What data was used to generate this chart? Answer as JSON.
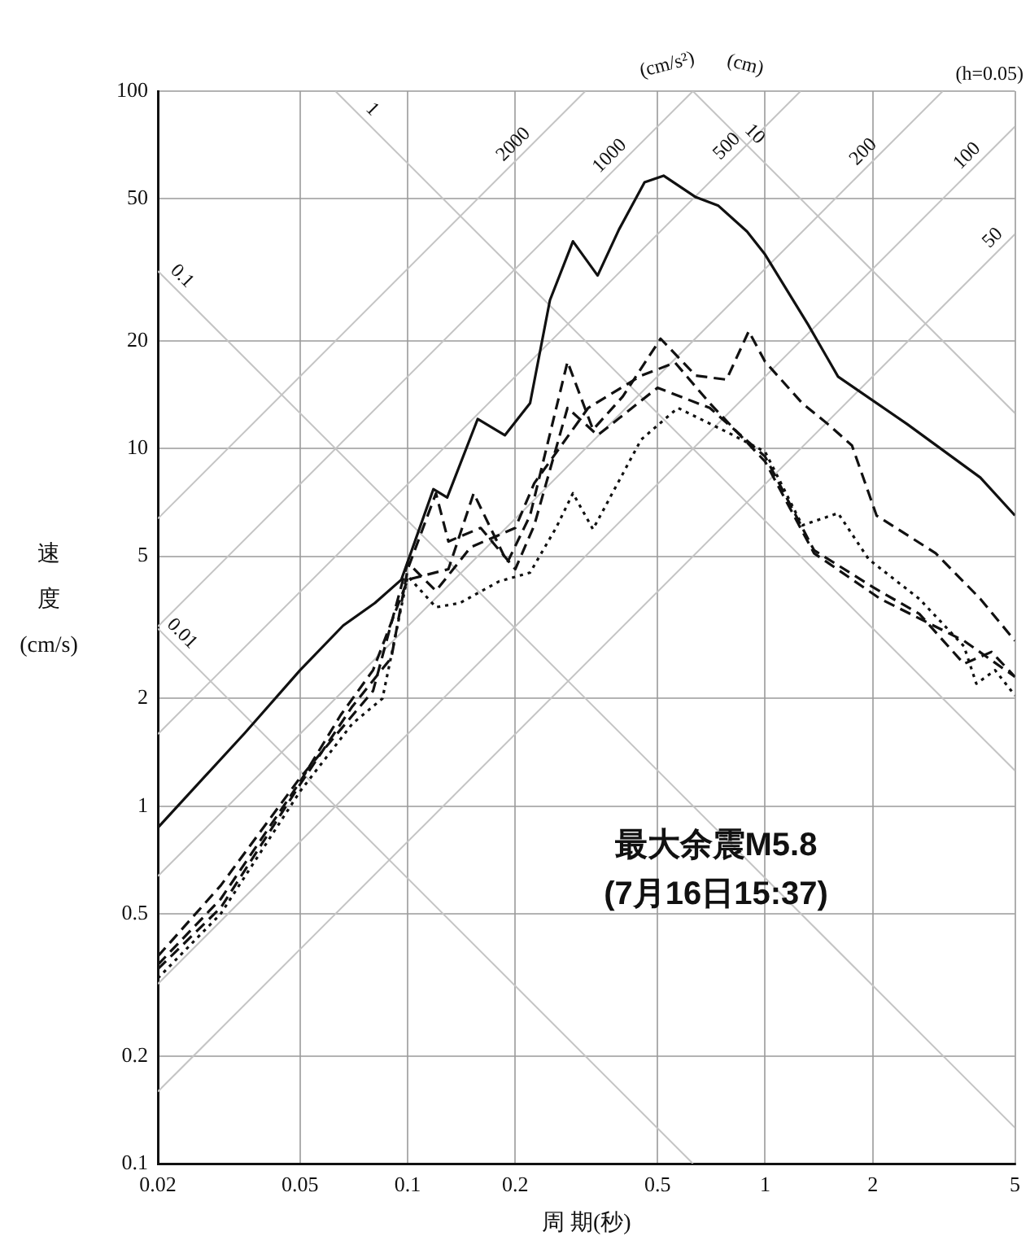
{
  "chart_data": {
    "type": "line",
    "xlabel": "周 期(秒)",
    "ylabel": "速度(cm/s)",
    "log": "xy",
    "grid": true,
    "legend": false,
    "marker": "none",
    "xlim": [
      0.02,
      5
    ],
    "xticks": [
      0.02,
      0.05,
      0.1,
      0.2,
      0.5,
      1,
      2,
      5
    ],
    "ylim": [
      0.1,
      100
    ],
    "yticks": [
      0.1,
      0.2,
      0.5,
      1,
      2,
      5,
      10,
      20,
      50,
      100
    ],
    "series": [
      {
        "color": "#111111",
        "line_style": "solid",
        "x": [
          0.02,
          0.035,
          0.05,
          0.066,
          0.081,
          0.096,
          0.118,
          0.129,
          0.157,
          0.187,
          0.22,
          0.25,
          0.29,
          0.34,
          0.39,
          0.46,
          0.52,
          0.64,
          0.74,
          0.89,
          1.0,
          1.32,
          1.6,
          2.5,
          4.0,
          5.0
        ],
        "values": [
          0.87,
          1.6,
          2.4,
          3.2,
          3.7,
          4.3,
          7.7,
          7.3,
          12.1,
          10.9,
          13.4,
          26,
          38,
          30.5,
          41,
          55.6,
          58,
          50.5,
          47.8,
          40.5,
          34.9,
          22.2,
          15.9,
          11.7,
          8.3,
          6.5
        ]
      },
      {
        "color": "#111111",
        "line_style": "dashed",
        "x": [
          0.02,
          0.03,
          0.05,
          0.065,
          0.08,
          0.1,
          0.13,
          0.153,
          0.19,
          0.22,
          0.28,
          0.33,
          0.4,
          0.51,
          0.64,
          0.78,
          0.9,
          1.0,
          1.27,
          1.5,
          1.75,
          2.05,
          3.0,
          4.0,
          5.0
        ],
        "values": [
          0.36,
          0.55,
          1.17,
          1.8,
          2.4,
          4.3,
          4.6,
          7.5,
          4.8,
          6.5,
          17.5,
          11.3,
          14,
          20.3,
          16,
          15.6,
          21.3,
          17.5,
          13.4,
          11.7,
          10.2,
          6.5,
          5.1,
          3.8,
          2.9
        ]
      },
      {
        "color": "#111111",
        "line_style": "dashed",
        "x": [
          0.02,
          0.03,
          0.05,
          0.08,
          0.1,
          0.12,
          0.15,
          0.2,
          0.226,
          0.32,
          0.45,
          0.56,
          0.7,
          1.0,
          1.37,
          2.1,
          3.6,
          5.0
        ],
        "values": [
          0.38,
          0.6,
          1.2,
          2.1,
          4.8,
          4.0,
          5.3,
          6.0,
          8.0,
          13,
          16,
          17.4,
          13.4,
          9.2,
          5.1,
          3.8,
          2.9,
          2.3
        ]
      },
      {
        "color": "#111111",
        "line_style": "dotted",
        "x": [
          0.02,
          0.03,
          0.05,
          0.07,
          0.085,
          0.1,
          0.12,
          0.14,
          0.18,
          0.22,
          0.26,
          0.29,
          0.33,
          0.45,
          0.57,
          0.8,
          1.0,
          1.27,
          1.6,
          1.95,
          2.7,
          3.6,
          3.9,
          4.4,
          5.0
        ],
        "values": [
          0.33,
          0.5,
          1.1,
          1.7,
          2.0,
          4.4,
          3.6,
          3.7,
          4.25,
          4.5,
          6.0,
          7.5,
          5.95,
          10.6,
          13,
          11,
          9.8,
          6.1,
          6.6,
          4.9,
          3.8,
          2.8,
          2.2,
          2.4,
          2.04
        ]
      },
      {
        "color": "#111111",
        "line_style": "dashed",
        "x": [
          0.02,
          0.03,
          0.05,
          0.07,
          0.09,
          0.1,
          0.12,
          0.13,
          0.16,
          0.2,
          0.226,
          0.28,
          0.34,
          0.5,
          0.7,
          1.0,
          1.37,
          2.0,
          2.7,
          3.6,
          4.3,
          5.0
        ],
        "values": [
          0.35,
          0.52,
          1.15,
          1.9,
          2.6,
          4.6,
          7.5,
          5.5,
          6.0,
          4.6,
          6.1,
          13,
          10.9,
          14.8,
          13,
          9.5,
          5.2,
          4.1,
          3.45,
          2.5,
          2.7,
          2.3
        ]
      },
      {
        "color": "#c4c4c4",
        "line_style": "solid",
        "x": [
          0.02,
          0.314
        ],
        "values": [
          6.37,
          100
        ]
      },
      {
        "color": "#c4c4c4",
        "line_style": "solid",
        "x": [
          0.02,
          0.628
        ],
        "values": [
          3.18,
          100
        ]
      },
      {
        "color": "#c4c4c4",
        "line_style": "solid",
        "x": [
          0.02,
          1.257
        ],
        "values": [
          1.59,
          100
        ]
      },
      {
        "color": "#c4c4c4",
        "line_style": "solid",
        "x": [
          0.02,
          3.14
        ],
        "values": [
          0.637,
          100
        ]
      },
      {
        "color": "#c4c4c4",
        "line_style": "solid",
        "x": [
          0.02,
          5
        ],
        "values": [
          0.318,
          79.6
        ]
      },
      {
        "color": "#c4c4c4",
        "line_style": "solid",
        "x": [
          0.02,
          5
        ],
        "values": [
          0.159,
          39.8
        ]
      },
      {
        "color": "#c4c4c4",
        "line_style": "solid",
        "x": [
          0.0628,
          5
        ],
        "values": [
          100,
          1.257
        ]
      },
      {
        "color": "#c4c4c4",
        "line_style": "solid",
        "x": [
          0.02,
          5
        ],
        "values": [
          31.4,
          0.126
        ]
      },
      {
        "color": "#c4c4c4",
        "line_style": "solid",
        "x": [
          0.02,
          0.628
        ],
        "values": [
          3.14,
          0.1
        ]
      },
      {
        "color": "#c4c4c4",
        "line_style": "solid",
        "x": [
          0.628,
          5
        ],
        "values": [
          100,
          12.57
        ]
      }
    ],
    "annotations": [
      "(cm/s²)",
      "(cm)",
      "(h=0.05)",
      "最大余震M5.8\n(7月16日15:37)",
      {
        "text": "1",
        "x": 0.075,
        "y": 83.8
      },
      {
        "text": "0.1",
        "x": 0.022,
        "y": 28.6
      },
      {
        "text": "0.01",
        "x": 0.022,
        "y": 2.86
      },
      {
        "text": "2000",
        "x": 0.21,
        "y": 66.8
      },
      {
        "text": "1000",
        "x": 0.39,
        "y": 62
      },
      {
        "text": "500",
        "x": 0.83,
        "y": 66
      },
      {
        "text": "10",
        "x": 0.88,
        "y": 71.4
      },
      {
        "text": "200",
        "x": 2.0,
        "y": 63.7
      },
      {
        "text": "100",
        "x": 3.9,
        "y": 62
      },
      {
        "text": "50",
        "x": 4.6,
        "y": 36.6
      }
    ]
  }
}
